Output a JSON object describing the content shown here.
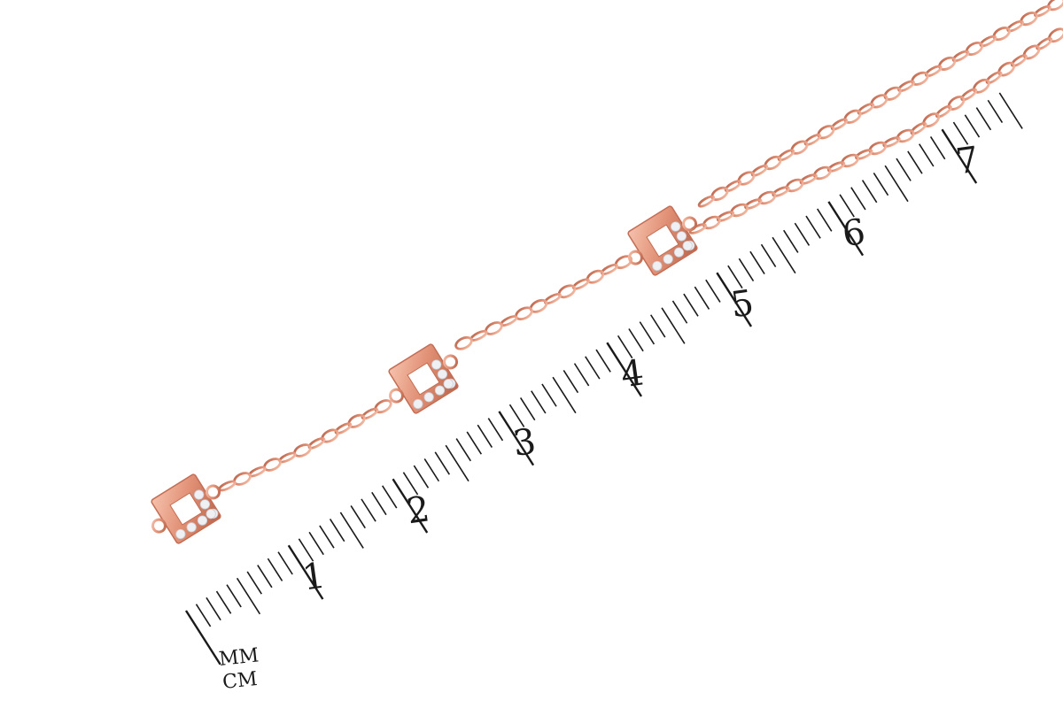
{
  "scene": {
    "subject": "rose-gold-chain-with-square-stone-pendants",
    "ruler": {
      "unit_labels": [
        "MM",
        "CM"
      ],
      "cm_labels": [
        "1",
        "2",
        "3",
        "4",
        "5",
        "6",
        "7"
      ]
    },
    "colors": {
      "background": "#ffffff",
      "chain": "#e08f74",
      "chain_dark": "#c46e55",
      "stone": "#eef0f3",
      "ruler_ink": "#1a1a1a"
    }
  }
}
